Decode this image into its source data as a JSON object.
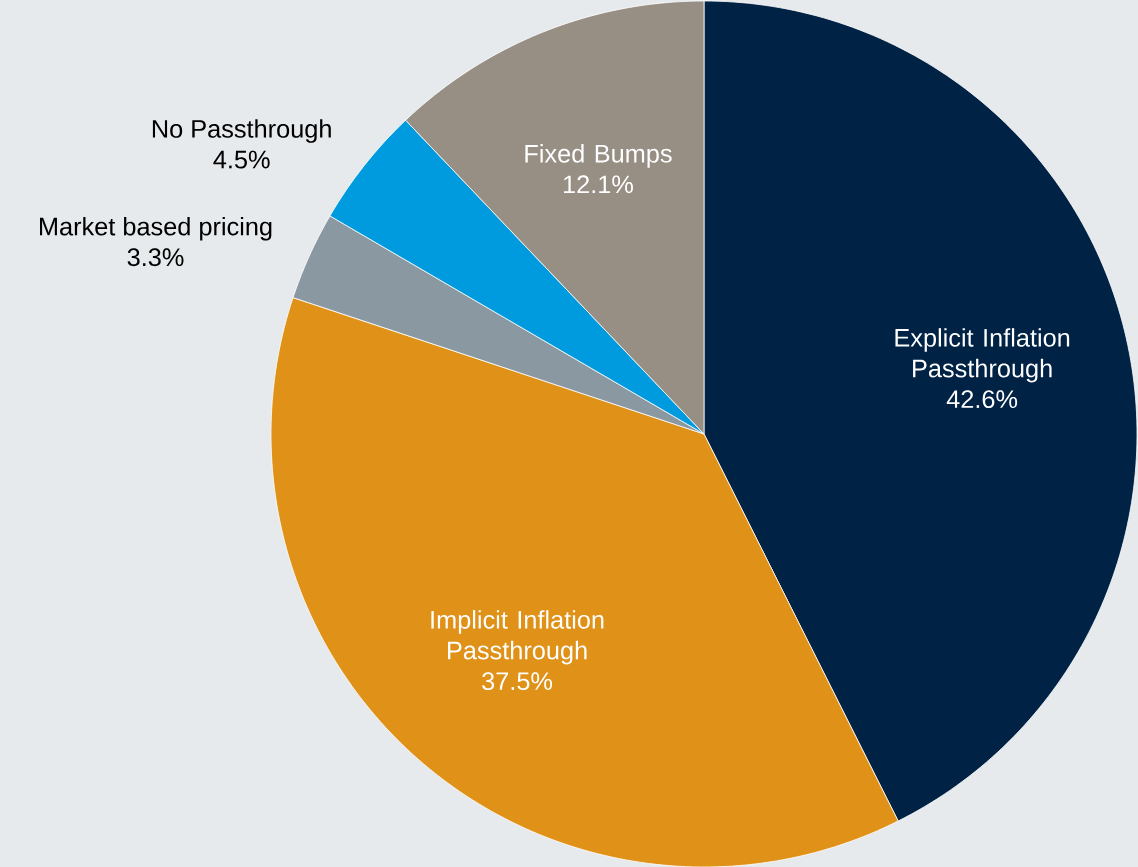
{
  "chart_data": {
    "type": "pie",
    "categories": [
      "Explicit Inflation Passthrough",
      "Implicit Inflation Passthrough",
      "Market based pricing",
      "No Passthrough",
      "Fixed Bumps"
    ],
    "values": [
      42.6,
      37.5,
      3.3,
      4.5,
      12.1
    ],
    "value_labels": [
      "42.6%",
      "37.5%",
      "3.3%",
      "4.5%",
      "12.1%"
    ],
    "colors": [
      "#002245",
      "#e09118",
      "#8a98a2",
      "#009ade",
      "#978e84"
    ]
  }
}
